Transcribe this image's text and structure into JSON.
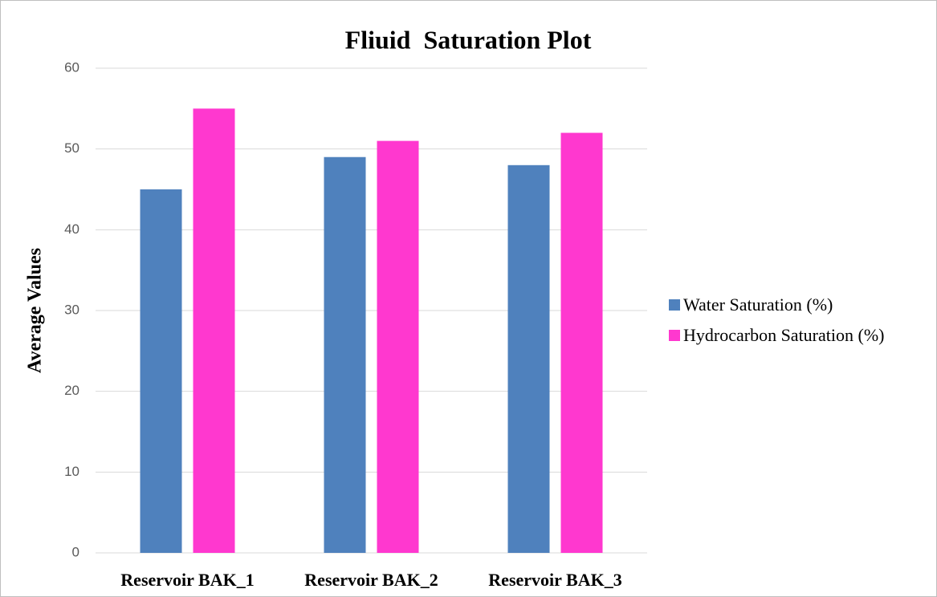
{
  "chart_data": {
    "type": "bar",
    "title": "Fliuid  Saturation Plot",
    "y_label": "Average Values",
    "categories": [
      "Reservoir BAK_1",
      "Reservoir BAK_2",
      "Reservoir BAK_3"
    ],
    "series": [
      {
        "name": "Water Saturation (%)",
        "color": "#4f81bd",
        "values": [
          45,
          49,
          48
        ]
      },
      {
        "name": "Hydrocarbon Saturation (%)",
        "color": "#ff38cf",
        "values": [
          55,
          51,
          52
        ]
      }
    ],
    "ylim": [
      0,
      60
    ],
    "yticks": [
      0,
      10,
      20,
      30,
      40,
      50,
      60
    ],
    "grid": true,
    "legend": "right"
  }
}
